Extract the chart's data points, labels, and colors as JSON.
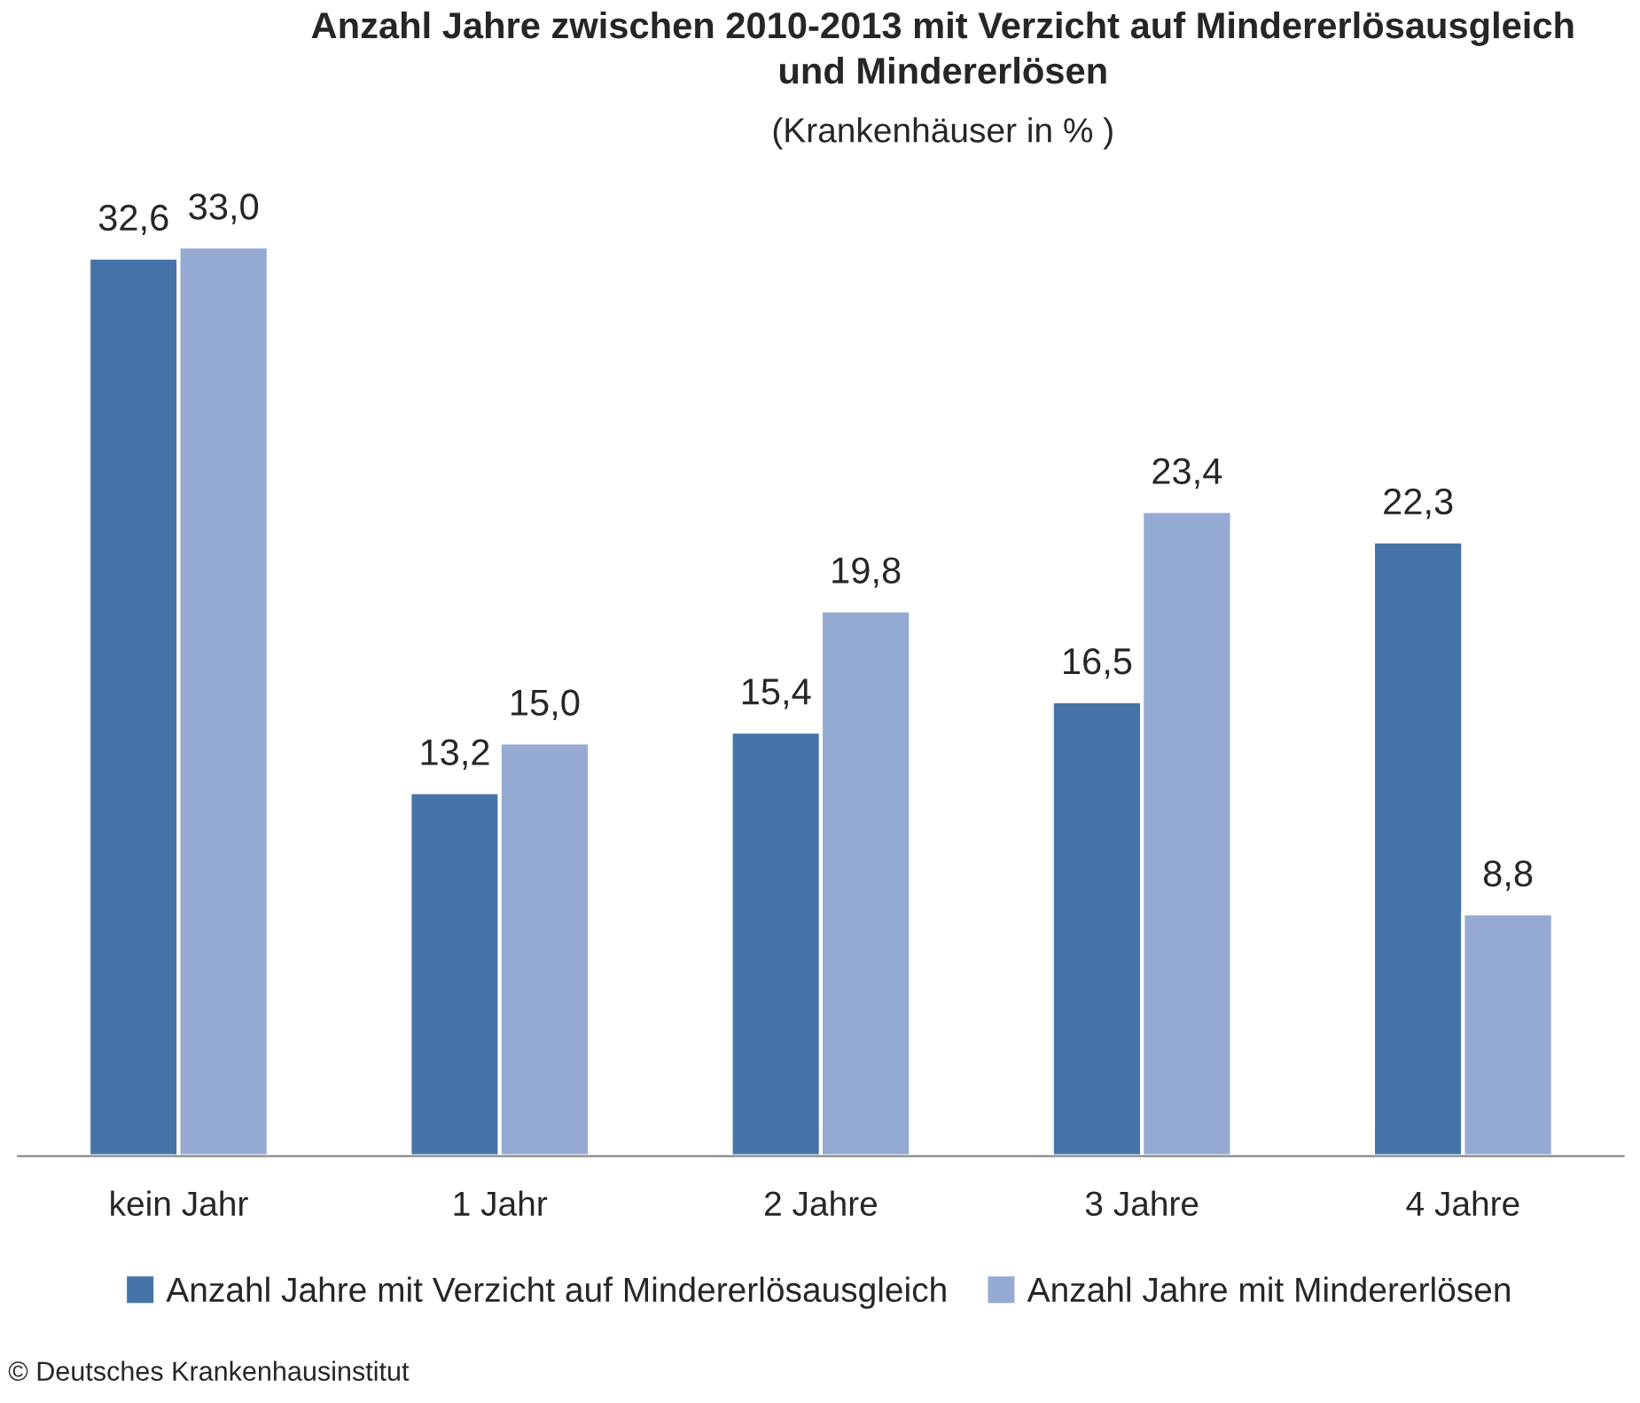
{
  "chart_data": {
    "type": "bar",
    "title": "Anzahl Jahre zwischen 2010-2013 mit Verzicht auf Mindererlösausgleich\nund Mindererlösen",
    "subtitle": "(Krankenhäuser in % )",
    "categories": [
      "kein Jahr",
      "1 Jahr",
      "2 Jahre",
      "3 Jahre",
      "4 Jahre"
    ],
    "series": [
      {
        "name": "Anzahl Jahre mit Verzicht auf Mindererlösausgleich",
        "color": "#4673a7",
        "values": [
          32.6,
          13.2,
          15.4,
          16.5,
          22.3
        ],
        "value_labels": [
          "32,6",
          "13,2",
          "15,4",
          "16,5",
          "22,3"
        ]
      },
      {
        "name": "Anzahl Jahre mit Mindererlösen",
        "color": "#95aad2",
        "values": [
          33.0,
          15.0,
          19.8,
          23.4,
          8.8
        ],
        "value_labels": [
          "33,0",
          "15,0",
          "19,8",
          "23,4",
          "8,8"
        ]
      }
    ],
    "tick_labels": "x",
    "grid": false,
    "legend": "bottom",
    "annotations": [
      "© Deutsches Krankenhausinstitut"
    ]
  }
}
